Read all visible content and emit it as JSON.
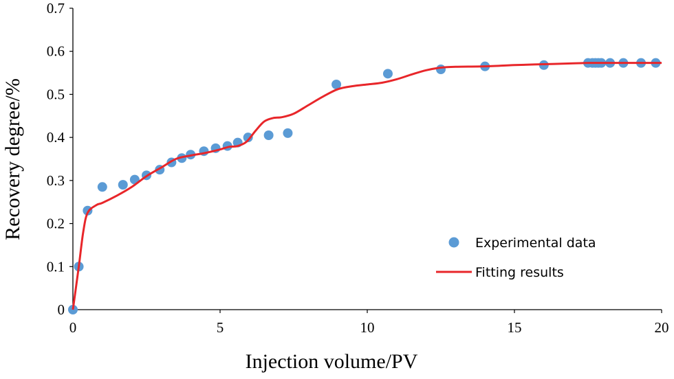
{
  "chart_data": {
    "type": "scatter",
    "title": "",
    "xlabel": "Injection volume/PV",
    "ylabel": "Recovery degree/%",
    "xlim": [
      0,
      20
    ],
    "ylim": [
      0,
      0.7
    ],
    "xticks": [
      0,
      5,
      10,
      15,
      20
    ],
    "yticks": [
      0,
      0.1,
      0.2,
      0.3,
      0.4,
      0.5,
      0.6,
      0.7
    ],
    "xtick_labels": [
      "0",
      "5",
      "10",
      "15",
      "20"
    ],
    "ytick_labels": [
      "0",
      "0.1",
      "0.2",
      "0.3",
      "0.4",
      "0.5",
      "0.6",
      "0.7"
    ],
    "grid": false,
    "legend_position": "bottom-right",
    "series": [
      {
        "name": "Experimental data",
        "kind": "scatter",
        "color": "#5b9bd5",
        "x": [
          0,
          0.2,
          0.5,
          1.0,
          1.7,
          2.1,
          2.5,
          2.95,
          3.35,
          3.7,
          4.0,
          4.45,
          4.85,
          5.25,
          5.6,
          5.95,
          6.65,
          7.3,
          8.95,
          10.7,
          12.5,
          14.0,
          16.0,
          17.5,
          17.65,
          17.75,
          17.85,
          17.95,
          18.25,
          18.7,
          19.3,
          19.8
        ],
        "y": [
          0,
          0.1,
          0.23,
          0.285,
          0.29,
          0.302,
          0.312,
          0.325,
          0.342,
          0.352,
          0.36,
          0.368,
          0.375,
          0.38,
          0.388,
          0.4,
          0.405,
          0.41,
          0.523,
          0.548,
          0.558,
          0.565,
          0.568,
          0.573,
          0.573,
          0.573,
          0.573,
          0.573,
          0.573,
          0.573,
          0.573,
          0.573
        ]
      },
      {
        "name": "Fitting results",
        "kind": "line",
        "color": "#e8262a",
        "x": [
          0,
          0.2,
          0.35,
          0.5,
          0.8,
          1.0,
          1.5,
          2.0,
          2.5,
          3.0,
          3.5,
          4.0,
          4.5,
          5.0,
          5.3,
          5.6,
          5.9,
          6.2,
          6.5,
          6.8,
          7.1,
          7.5,
          8.0,
          8.5,
          9.0,
          9.5,
          10.0,
          10.5,
          11.0,
          11.5,
          12.0,
          12.5,
          13.0,
          14.0,
          15.0,
          16.0,
          17.0,
          17.5,
          18.0,
          19.0,
          20.0
        ],
        "y": [
          0,
          0.1,
          0.18,
          0.225,
          0.243,
          0.248,
          0.265,
          0.285,
          0.31,
          0.33,
          0.35,
          0.358,
          0.364,
          0.372,
          0.378,
          0.38,
          0.39,
          0.415,
          0.437,
          0.445,
          0.447,
          0.455,
          0.475,
          0.495,
          0.512,
          0.519,
          0.523,
          0.527,
          0.535,
          0.546,
          0.556,
          0.562,
          0.564,
          0.565,
          0.568,
          0.57,
          0.572,
          0.573,
          0.573,
          0.573,
          0.573
        ]
      }
    ]
  }
}
